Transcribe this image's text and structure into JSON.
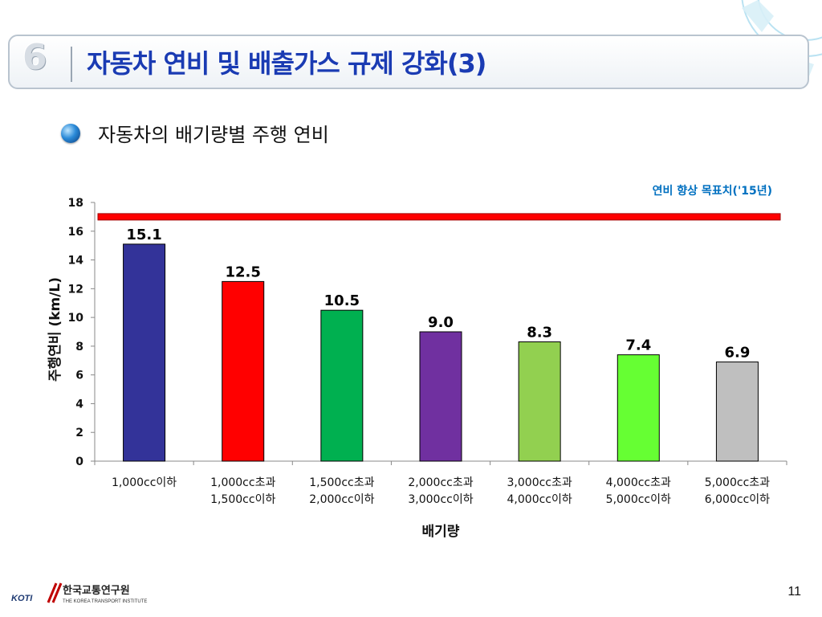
{
  "slide": {
    "number": "6",
    "title": "자동차  연비 및 배출가스 규제 강화(3)",
    "subtitle": "자동차의 배기량별 주행 연비",
    "page_number": "11",
    "logo_korean": "한국교통연구원",
    "logo_english": "THE KOREA TRANSPORT INSTITUTE",
    "logo_mark": "KOTI"
  },
  "chart_data": {
    "type": "bar",
    "title": "",
    "xlabel": "배기량",
    "ylabel": "주행연비 (km/L)",
    "ylim": [
      0,
      18
    ],
    "yticks": [
      "0",
      "2",
      "4",
      "6",
      "8",
      "10",
      "12",
      "14",
      "16",
      "18"
    ],
    "grid": false,
    "categories": [
      [
        "1,000cc이하"
      ],
      [
        "1,000cc초과",
        "1,500cc이하"
      ],
      [
        "1,500cc초과",
        "2,000cc이하"
      ],
      [
        "2,000cc초과",
        "3,000cc이하"
      ],
      [
        "3,000cc초과",
        "4,000cc이하"
      ],
      [
        "4,000cc초과",
        "5,000cc이하"
      ],
      [
        "5,000cc초과",
        "6,000cc이하"
      ]
    ],
    "values": [
      15.1,
      12.5,
      10.5,
      9.0,
      8.3,
      7.4,
      6.9
    ],
    "data_labels": [
      "15.1",
      "12.5",
      "10.5",
      "9.0",
      "8.3",
      "7.4",
      "6.9"
    ],
    "bar_colors": [
      "#333399",
      "#ff0000",
      "#00b050",
      "#7030a0",
      "#92d050",
      "#66ff33",
      "#bfbfbf"
    ],
    "target_line": {
      "label": "연비 향상 목표치('15년)",
      "value": 17,
      "color": "#ff0000",
      "label_color": "#0070c0"
    }
  }
}
